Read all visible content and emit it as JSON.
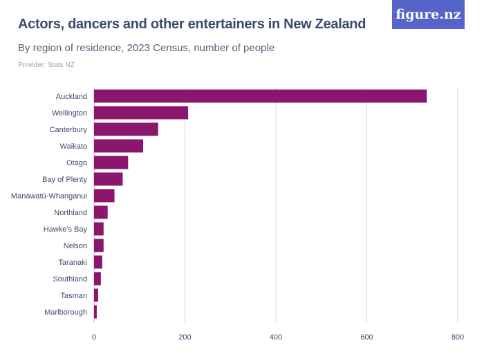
{
  "title": "Actors, dancers and other entertainers in New Zealand",
  "subtitle": "By region of residence, 2023 Census, number of people",
  "provider": "Provider: Stats NZ",
  "logo_text": "figure.nz",
  "colors": {
    "bar": "#8a166e",
    "logo_bg": "#5464c8",
    "grid": "#d9d9d9"
  },
  "chart_data": {
    "type": "bar",
    "orientation": "horizontal",
    "categories": [
      "Auckland",
      "Wellington",
      "Canterbury",
      "Waikato",
      "Otago",
      "Bay of Plenty",
      "Manawatū-Whanganui",
      "Northland",
      "Hawke's Bay",
      "Nelson",
      "Taranaki",
      "Southland",
      "Tasman",
      "Marlborough"
    ],
    "values": [
      732,
      207,
      141,
      108,
      75,
      63,
      45,
      30,
      21,
      21,
      18,
      15,
      9,
      6
    ],
    "xlim": [
      0,
      800
    ],
    "xticks": [
      0,
      200,
      400,
      600,
      800
    ],
    "grid": true
  }
}
